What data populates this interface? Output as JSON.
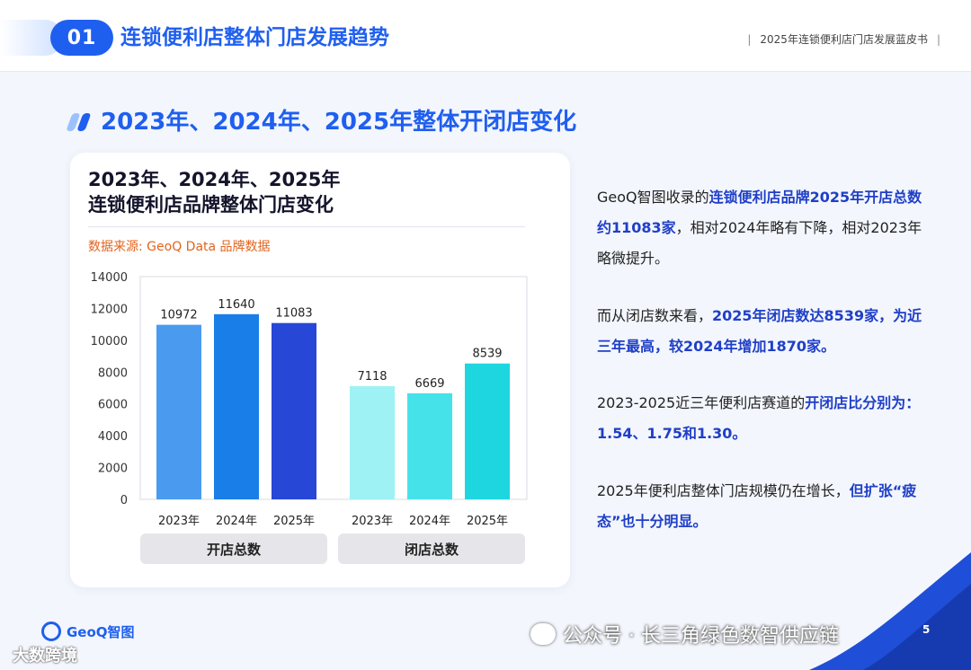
{
  "header": {
    "section_number": "01",
    "title": "连锁便利店整体门店发展趋势",
    "report_name": "2025年连锁便利店门店发展蓝皮书",
    "separator": "|"
  },
  "section": {
    "title": "2023年、2024年、2025年整体开闭店变化"
  },
  "card": {
    "title_line1": "2023年、2024年、2025年",
    "title_line2": "连锁便利店品牌整体门店变化",
    "source": "数据来源: GeoQ Data 品牌数据",
    "group_open": "开店总数",
    "group_close": "闭店总数"
  },
  "chart_data": {
    "type": "bar",
    "title": "2023年、2024年、2025年 连锁便利店品牌整体门店变化",
    "ylim": [
      0,
      14000
    ],
    "yticks": [
      0,
      2000,
      4000,
      6000,
      8000,
      10000,
      12000,
      14000
    ],
    "grid": true,
    "groups": [
      {
        "name": "开店总数",
        "categories": [
          "2023年",
          "2024年",
          "2025年"
        ],
        "values": [
          10972,
          11640,
          11083
        ],
        "colors": [
          "#4a9bf0",
          "#1a7ee8",
          "#2747d6"
        ]
      },
      {
        "name": "闭店总数",
        "categories": [
          "2023年",
          "2024年",
          "2025年"
        ],
        "values": [
          7118,
          6669,
          8539
        ],
        "colors": [
          "#9ef2f4",
          "#46e2ea",
          "#1ed6df"
        ]
      }
    ]
  },
  "text": {
    "p1_a": "GeoQ智图收录的",
    "p1_hl": "连锁便利店品牌2025年开店总数约11083家",
    "p1_b": "，相对2024年略有下降，相对2023年略微提升。",
    "p2_a": "而从闭店数来看，",
    "p2_hl": "2025年闭店数达8539家，为近三年最高，较2024年增加1870家。",
    "p3_a": "2023-2025近三年便利店赛道的",
    "p3_hl": "开闭店比分别为：1.54、1.75和1.30。",
    "p4_a": "2025年便利店整体门店规模仍在增长，",
    "p4_hl": "但扩张“疲态”也十分明显。"
  },
  "footer": {
    "logo_text": "GeoQ智图",
    "watermark_left": "大数跨境",
    "watermark_right": "公众号 · 长三角绿色数智供应链",
    "page_number": "5"
  },
  "colors": {
    "brand_blue": "#1f5ff0",
    "highlight": "#1f3fc8",
    "source_orange": "#e0641e"
  }
}
